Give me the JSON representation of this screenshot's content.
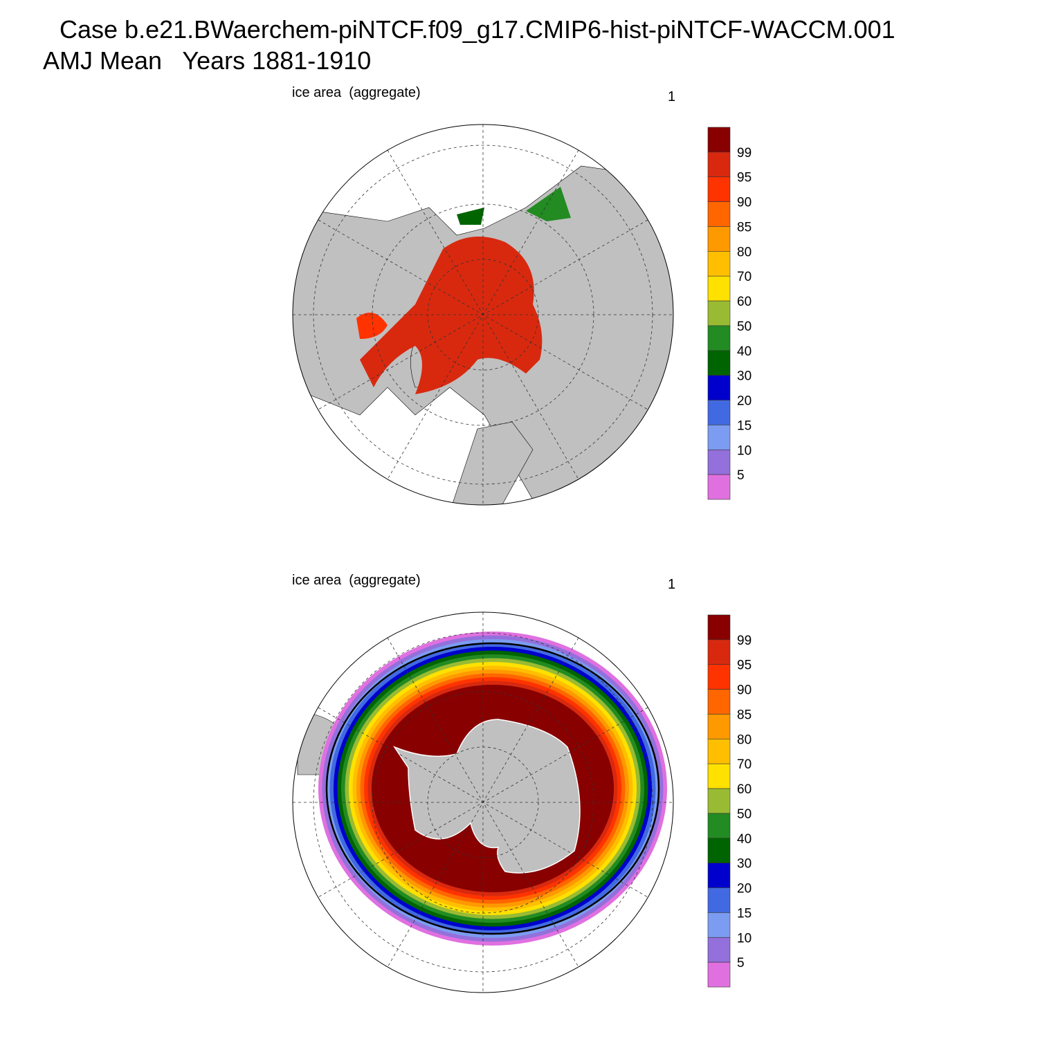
{
  "title": [
    "Case b.e21.BWaerchem-piNTCF.f09_g17.CMIP6-hist-piNTCF-WACCM.001",
    "AMJ Mean   Years 1881-1910"
  ],
  "panels": [
    {
      "left_title": "ice area  (aggregate)",
      "right_title": "1",
      "colorbar": {
        "levels": [
          "99",
          "95",
          "90",
          "85",
          "80",
          "70",
          "60",
          "50",
          "40",
          "30",
          "20",
          "15",
          "10",
          "5"
        ],
        "colors": [
          "#880000",
          "#d8290f",
          "#ff3300",
          "#ff6600",
          "#ff9900",
          "#ffbf00",
          "#ffe100",
          "#99bb33",
          "#228b22",
          "#006400",
          "#0000cd",
          "#4169e1",
          "#7b9cf0",
          "#9370db",
          "#e070e0"
        ]
      }
    },
    {
      "left_title": "ice area  (aggregate)",
      "right_title": "1",
      "colorbar": {
        "levels": [
          "99",
          "95",
          "90",
          "85",
          "80",
          "70",
          "60",
          "50",
          "40",
          "30",
          "20",
          "15",
          "10",
          "5"
        ],
        "colors": [
          "#880000",
          "#d8290f",
          "#ff3300",
          "#ff6600",
          "#ff9900",
          "#ffbf00",
          "#ffe100",
          "#99bb33",
          "#228b22",
          "#006400",
          "#0000cd",
          "#4169e1",
          "#7b9cf0",
          "#9370db",
          "#e070e0"
        ]
      }
    }
  ]
}
